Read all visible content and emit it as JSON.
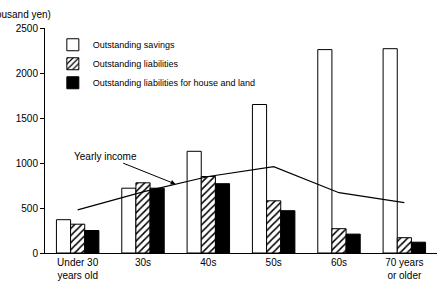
{
  "chart_data": {
    "type": "bar",
    "ylabel": "(in ten thousand yen)",
    "categories": [
      "Under 30 years old",
      "30s",
      "40s",
      "50s",
      "60s",
      "70 years or older"
    ],
    "series": [
      {
        "name": "Outstanding savings",
        "type": "bar",
        "color": "#ffffff",
        "values": [
          370,
          720,
          1130,
          1650,
          2260,
          2270
        ]
      },
      {
        "name": "Outstanding liabilities",
        "type": "bar",
        "color": "#ffffff",
        "marker": "hatched",
        "values": [
          320,
          780,
          850,
          580,
          270,
          170
        ]
      },
      {
        "name": "Outstanding liabilities for house and land",
        "type": "bar",
        "color": "#000000",
        "values": [
          250,
          720,
          770,
          470,
          210,
          120
        ]
      },
      {
        "name": "Yearly income",
        "type": "line",
        "color": "#000000",
        "values": [
          480,
          680,
          850,
          960,
          670,
          560
        ]
      }
    ],
    "ylim": [
      0,
      2500
    ],
    "yticks": [
      0,
      500,
      1000,
      1500,
      2000,
      2500
    ],
    "grid": false,
    "legend": "top-left"
  }
}
